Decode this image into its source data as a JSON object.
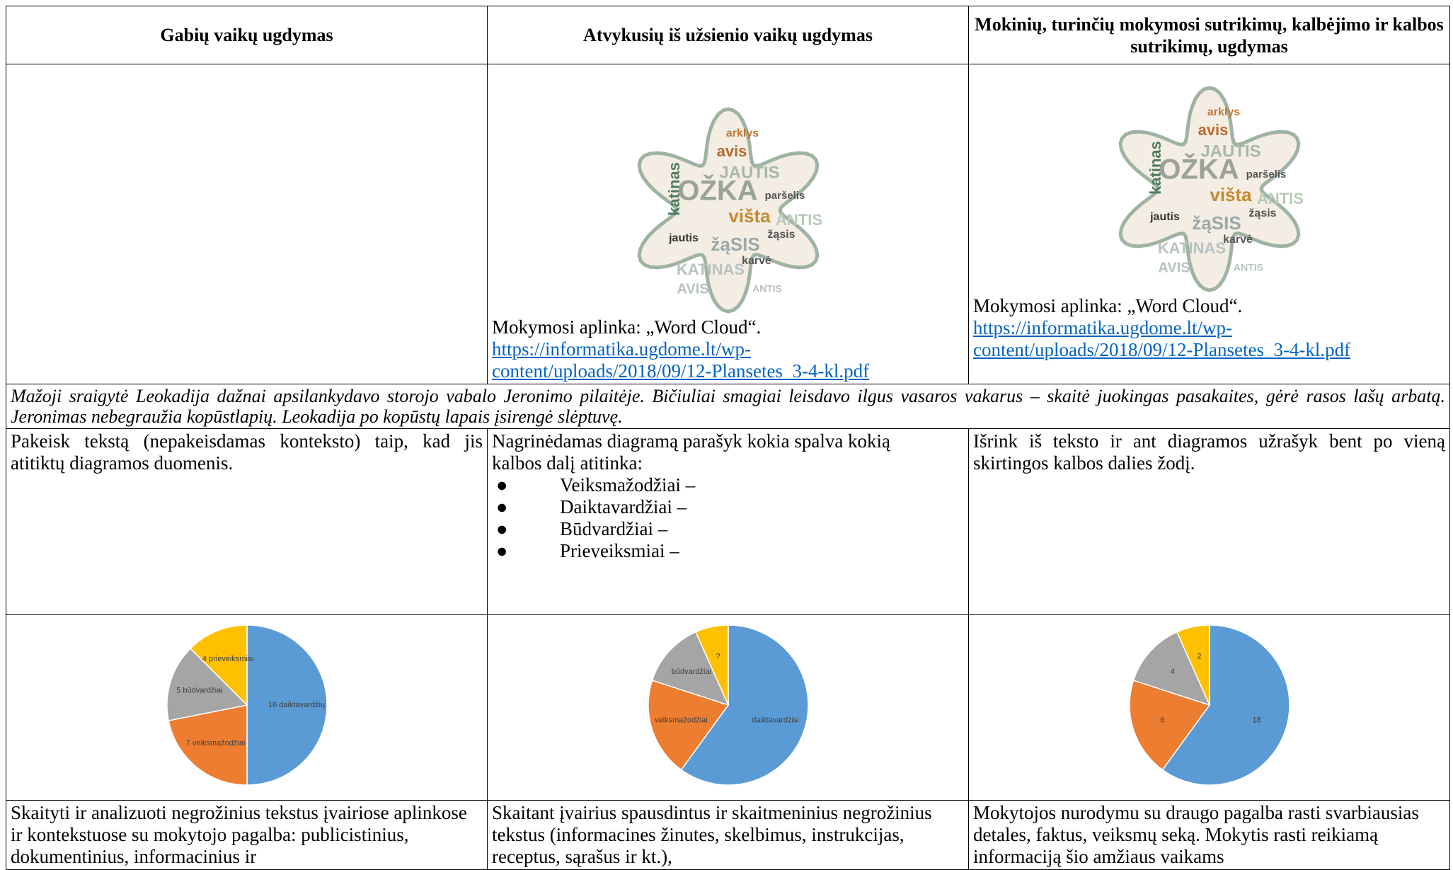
{
  "table": {
    "header": [
      "Gabių vaikų ugdymas",
      "Atvykusių iš užsienio vaikų ugdymas",
      "Mokinių, turinčių mokymosi sutrikimų, kalbėjimo ir kalbos sutrikimų, ugdymas"
    ],
    "resources": [
      {
        "words": [
          "arklys",
          "avis",
          "JAUTIS",
          "katinas",
          "OŽKA",
          "paršelis",
          "višta",
          "ANTIS",
          "jautis",
          "žąSIS",
          "žąsis",
          "karvė",
          "KATINAS",
          "AVIS",
          "ANTIS"
        ],
        "caption": "Mokymosi aplinka: „Word Cloud“.",
        "link": "https://informatika.ugdome.lt/wp-content/uploads/2018/09/12-Plansetes_3-4-kl.pdf"
      },
      {
        "words": [
          "arklys",
          "avis",
          "JAUTIS",
          "katinas",
          "OŽKA",
          "paršelis",
          "višta",
          "ANTIS",
          "jautis",
          "žąSIS",
          "žąsis",
          "karvė",
          "KATINAS",
          "AVIS",
          "ANTIS"
        ],
        "caption": "Mokymosi aplinka: „Word Cloud“.",
        "link": "https://informatika.ugdome.lt/wp-content/uploads/2018/09/12-Plansetes_3-4-kl.pdf"
      }
    ],
    "story": "Mažoji sraigytė Leokadija dažnai apsilankydavo storojo vabalo Jeronimo pilaitėje. Bičiuliai smagiai leisdavo ilgus vasaros vakarus – skaitė juokingas pasakaites, gėrė rasos lašų arbatą. Jeronimas nebegraužia kopūstlapių. Leokadija po kopūstų lapais įsirengė slėptuvę.",
    "tasks": [
      {
        "text": "Pakeisk tekstą (nepakeisdamas konteksto) taip, kad jis atitiktų diagramos duomenis."
      },
      {
        "text": "Nagrinėdamas diagramą parašyk kokia spalva kokią kalbos dalį atitinka:",
        "items": [
          "Veiksmažodžiai –",
          "Daiktavardžiai –",
          "Būdvardžiai –",
          "Prieveiksmiai –"
        ]
      },
      {
        "text": "Išrink iš teksto ir ant diagramos užrašyk bent po vieną skirtingos kalbos dalies žodį."
      }
    ],
    "pie_colors": [
      "#5b9bd5",
      "#ed7d31",
      "#a5a5a5",
      "#ffc000"
    ],
    "pies": [
      {
        "slices": [
          {
            "label": "16 daiktavardžių",
            "value": 16
          },
          {
            "label": "7 veiksmažodžiai",
            "value": 7
          },
          {
            "label": "5 būdvardžiai",
            "value": 5
          },
          {
            "label": "4 prieveiksmiai",
            "value": 4
          }
        ]
      },
      {
        "slices": [
          {
            "label": "daiktavardžisi",
            "value": 18
          },
          {
            "label": "veiksmažodžiai",
            "value": 6
          },
          {
            "label": "būdvardžiai",
            "value": 4
          },
          {
            "label": "?",
            "value": 2
          }
        ]
      },
      {
        "slices": [
          {
            "value": 18
          },
          {
            "value": 6
          },
          {
            "value": 4
          },
          {
            "value": 2
          }
        ]
      }
    ],
    "outcomes": [
      "Skaityti ir analizuoti negrožinius tekstus įvairiose aplinkose ir kontekstuose su mokytojo pagalba: publicistinius, dokumentinius, informacinius ir",
      "Skaitant įvairius spausdintus ir skaitmeninius negrožinius tekstus (informacines žinutes, skelbimus, instrukcijas, receptus, sąrašus ir kt.),",
      "Mokytojos nurodymu su draugo pagalba rasti svarbiausias detales, faktus, veiksmų seką. Mokytis rasti reikiamą informaciją šio amžiaus vaikams"
    ]
  }
}
